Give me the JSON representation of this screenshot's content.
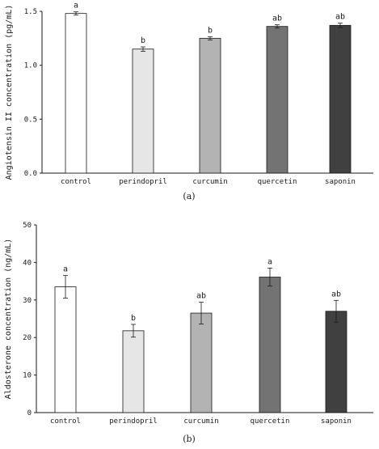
{
  "chart_data": [
    {
      "type": "bar",
      "panel_label": "(a)",
      "categories": [
        "control",
        "perindopril",
        "curcumin",
        "quercetin",
        "saponin"
      ],
      "values": [
        1.48,
        1.15,
        1.25,
        1.36,
        1.37
      ],
      "errors": [
        0.015,
        0.02,
        0.015,
        0.015,
        0.02
      ],
      "significance": [
        "a",
        "b",
        "b",
        "ab",
        "ab"
      ],
      "bar_colors": [
        "#ffffff",
        "#e6e6e6",
        "#b3b3b3",
        "#737373",
        "#404040"
      ],
      "ylabel": "Angiotensin II concentration (pg/mL)",
      "ylim": [
        0,
        1.5
      ],
      "yticks": [
        "0.0",
        "0.5",
        "1.0",
        "1.5"
      ],
      "ytick_values": [
        0,
        0.5,
        1.0,
        1.5
      ],
      "grid": false
    },
    {
      "type": "bar",
      "panel_label": "(b)",
      "categories": [
        "control",
        "perindopril",
        "curcumin",
        "quercetin",
        "saponin"
      ],
      "values": [
        33.5,
        21.8,
        26.5,
        36.1,
        27.0
      ],
      "errors": [
        3.0,
        1.7,
        2.9,
        2.4,
        2.9
      ],
      "significance": [
        "a",
        "b",
        "ab",
        "a",
        "ab"
      ],
      "bar_colors": [
        "#ffffff",
        "#e6e6e6",
        "#b3b3b3",
        "#737373",
        "#404040"
      ],
      "ylabel": "Aldosterone concentration (ng/mL)",
      "ylim": [
        0,
        50
      ],
      "yticks": [
        "0",
        "10",
        "20",
        "30",
        "40",
        "50"
      ],
      "ytick_values": [
        0,
        10,
        20,
        30,
        40,
        50
      ],
      "grid": false
    }
  ]
}
